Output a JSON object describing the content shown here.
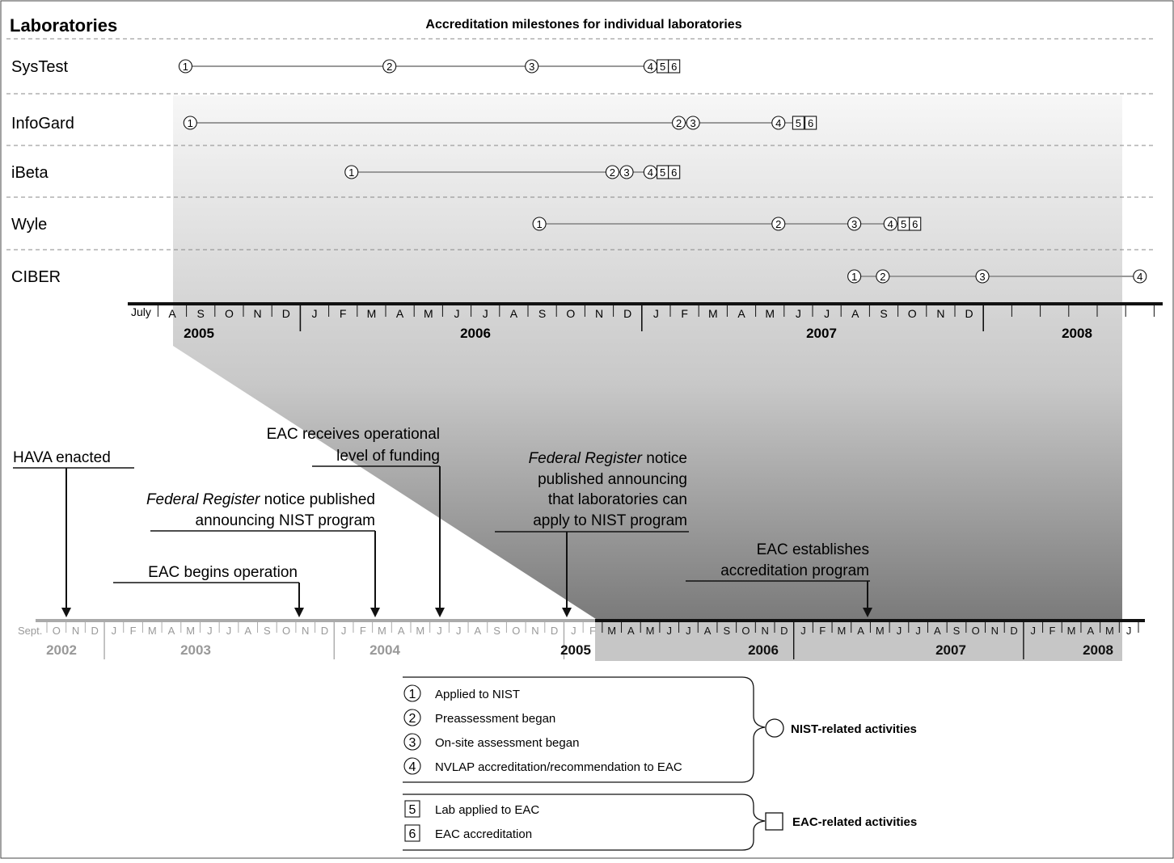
{
  "header": {
    "left_title": "Laboratories",
    "center_title": "Accreditation milestones for individual laboratories"
  },
  "labs": [
    {
      "name": "SysTest",
      "milestones": [
        {
          "label": "1",
          "date": "2005-08-15"
        },
        {
          "label": "2",
          "date": "2006-03-20"
        },
        {
          "label": "3",
          "date": "2006-08-20"
        },
        {
          "label": "4",
          "date": "2006-12-25"
        },
        {
          "label": "5",
          "date": "2007-01-08",
          "kind": "box"
        },
        {
          "label": "6",
          "date": "2007-01-20",
          "kind": "box"
        }
      ]
    },
    {
      "name": "InfoGard",
      "milestones": [
        {
          "label": "1",
          "date": "2005-08-20"
        },
        {
          "label": "2",
          "date": "2007-01-25"
        },
        {
          "label": "3",
          "date": "2007-02-10"
        },
        {
          "label": "4",
          "date": "2007-05-10"
        },
        {
          "label": "5",
          "date": "2007-06-01",
          "kind": "box"
        },
        {
          "label": "6",
          "date": "2007-06-14",
          "kind": "box"
        }
      ]
    },
    {
      "name": "iBeta",
      "milestones": [
        {
          "label": "1",
          "date": "2006-02-10"
        },
        {
          "label": "2",
          "date": "2006-11-15"
        },
        {
          "label": "3",
          "date": "2006-11-30"
        },
        {
          "label": "4",
          "date": "2006-12-25"
        },
        {
          "label": "5",
          "date": "2007-01-08",
          "kind": "box"
        },
        {
          "label": "6",
          "date": "2007-01-20",
          "kind": "box"
        }
      ]
    },
    {
      "name": "Wyle",
      "milestones": [
        {
          "label": "1",
          "date": "2006-08-28"
        },
        {
          "label": "2",
          "date": "2007-05-10"
        },
        {
          "label": "3",
          "date": "2007-07-30"
        },
        {
          "label": "4",
          "date": "2007-09-08"
        },
        {
          "label": "5",
          "date": "2007-09-22",
          "kind": "box"
        },
        {
          "label": "6",
          "date": "2007-10-04",
          "kind": "box"
        }
      ]
    },
    {
      "name": "CIBER",
      "milestones": [
        {
          "label": "1",
          "date": "2007-07-30"
        },
        {
          "label": "2",
          "date": "2007-08-30"
        },
        {
          "label": "3",
          "date": "2007-12-15"
        },
        {
          "label": "4",
          "date": "2008-06-01"
        }
      ]
    }
  ],
  "top_axis": {
    "start_label": "July",
    "months": [
      "A",
      "S",
      "O",
      "N",
      "D",
      "J",
      "F",
      "M",
      "A",
      "M",
      "J",
      "J",
      "A",
      "S",
      "O",
      "N",
      "D",
      "J",
      "F",
      "M",
      "A",
      "M",
      "J",
      "J",
      "A",
      "S",
      "O",
      "N",
      "D"
    ],
    "years": [
      "2005",
      "2006",
      "2007",
      "2008"
    ]
  },
  "bottom_axis": {
    "start_label": "Sept.",
    "months": [
      "O",
      "N",
      "D",
      "J",
      "F",
      "M",
      "A",
      "M",
      "J",
      "J",
      "A",
      "S",
      "O",
      "N",
      "D",
      "J",
      "F",
      "M",
      "A",
      "M",
      "J",
      "J",
      "A",
      "S",
      "O",
      "N",
      "D",
      "J",
      "F",
      "M",
      "A",
      "M",
      "J",
      "J",
      "A",
      "S",
      "O",
      "N",
      "D",
      "J",
      "F",
      "M",
      "A",
      "M",
      "J",
      "J",
      "A",
      "S",
      "O",
      "N",
      "D",
      "J",
      "F",
      "M",
      "A",
      "M",
      "J"
    ],
    "years": [
      "2002",
      "2003",
      "2004",
      "2005",
      "2006",
      "2007",
      "2008"
    ]
  },
  "events": [
    {
      "lines": [
        "HAVA enacted"
      ]
    },
    {
      "lines": [
        "EAC begins operation"
      ]
    },
    {
      "lines": [
        "Federal Register notice published",
        "announcing NIST program"
      ],
      "italic_prefix": "Federal Register"
    },
    {
      "lines": [
        "EAC receives operational",
        "level of funding"
      ]
    },
    {
      "lines": [
        "Federal Register notice",
        "published announcing",
        "that laboratories can",
        "apply to NIST program"
      ],
      "italic_prefix": "Federal Register"
    },
    {
      "lines": [
        "EAC establishes",
        "accreditation program"
      ]
    }
  ],
  "legend": {
    "nist_items": [
      {
        "num": "1",
        "text": "Applied to NIST"
      },
      {
        "num": "2",
        "text": "Preassessment began"
      },
      {
        "num": "3",
        "text": "On-site assessment began"
      },
      {
        "num": "4",
        "text": "NVLAP accreditation/recommendation to EAC"
      }
    ],
    "nist_label": "NIST-related activities",
    "eac_items": [
      {
        "num": "5",
        "text": "Lab applied to EAC"
      },
      {
        "num": "6",
        "text": "EAC accreditation"
      }
    ],
    "eac_label": "EAC-related activities"
  }
}
